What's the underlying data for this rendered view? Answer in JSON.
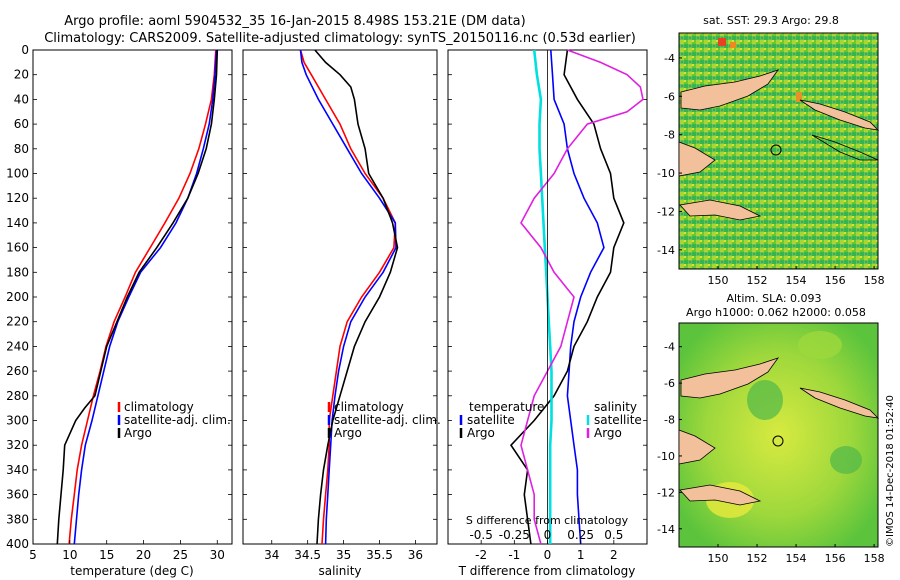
{
  "title": {
    "line1": "Argo profile: aoml 5904532_35 16-Jan-2015 8.498S 153.21E (DM data)",
    "line2": "Climatology: CARS2009. Satellite-adjusted climatology: synTS_20150116.nc (0.53d earlier)"
  },
  "colors": {
    "climatology": "#ff0000",
    "satellite": "#0000ff",
    "argo": "#000000",
    "sal_sat": "#00e0e0",
    "sal_argo": "#e020e0",
    "land": "#f2c09a"
  },
  "depth_ticks": [
    "0",
    "20",
    "40",
    "60",
    "80",
    "100",
    "120",
    "140",
    "160",
    "180",
    "200",
    "220",
    "240",
    "260",
    "280",
    "300",
    "320",
    "340",
    "360",
    "380",
    "400"
  ],
  "chart_data": [
    {
      "type": "line",
      "xlabel": "temperature (deg C)",
      "xlim": [
        5,
        32
      ],
      "ylim": [
        400,
        0
      ],
      "xticks": [
        "5",
        "10",
        "15",
        "20",
        "25",
        "30"
      ],
      "legend": [
        "climatology",
        "satellite-adj. clim.",
        "Argo"
      ],
      "series": [
        {
          "name": "climatology",
          "depth": [
            0,
            20,
            40,
            60,
            80,
            100,
            120,
            140,
            160,
            180,
            200,
            220,
            240,
            260,
            280,
            300,
            320,
            340,
            360,
            380,
            400
          ],
          "values": [
            29.8,
            29.6,
            29.2,
            28.4,
            27.5,
            26.3,
            24.8,
            22.9,
            20.9,
            18.9,
            17.5,
            16.0,
            14.9,
            14.1,
            13.2,
            12.4,
            11.6,
            11.0,
            10.6,
            10.2,
            9.9
          ]
        },
        {
          "name": "satellite-adj. clim.",
          "depth": [
            0,
            20,
            40,
            60,
            80,
            100,
            120,
            140,
            160,
            180,
            200,
            220,
            240,
            260,
            280,
            300,
            320,
            340,
            360,
            380,
            400
          ],
          "values": [
            29.9,
            29.7,
            29.4,
            28.9,
            28.1,
            27.2,
            26.0,
            24.4,
            22.3,
            19.6,
            18.0,
            16.5,
            15.4,
            14.6,
            13.8,
            13.0,
            12.1,
            11.6,
            11.2,
            10.9,
            10.6
          ]
        },
        {
          "name": "Argo",
          "depth": [
            0,
            20,
            40,
            60,
            80,
            100,
            120,
            140,
            160,
            180,
            200,
            220,
            240,
            260,
            280,
            290,
            300,
            320,
            340,
            360,
            380,
            400
          ],
          "values": [
            30.0,
            29.9,
            29.6,
            29.2,
            28.5,
            27.4,
            26.0,
            24.0,
            21.8,
            19.4,
            17.8,
            16.4,
            15.0,
            14.2,
            13.4,
            12.0,
            10.8,
            9.3,
            9.1,
            8.8,
            8.5,
            8.3
          ]
        }
      ]
    },
    {
      "type": "line",
      "xlabel": "salinity",
      "xlim": [
        33.6,
        36.3
      ],
      "ylim": [
        400,
        0
      ],
      "xticks": [
        "34",
        "34.5",
        "35",
        "35.5",
        "36"
      ],
      "legend": [
        "climatology",
        "satellite-adj. clim.",
        "Argo"
      ],
      "series": [
        {
          "name": "climatology",
          "depth": [
            0,
            10,
            20,
            40,
            60,
            80,
            100,
            120,
            140,
            160,
            180,
            200,
            220,
            240,
            260,
            280,
            300,
            320,
            340,
            360,
            380,
            400
          ],
          "values": [
            34.4,
            34.45,
            34.55,
            34.75,
            34.95,
            35.1,
            35.3,
            35.55,
            35.72,
            35.7,
            35.5,
            35.25,
            35.05,
            34.95,
            34.9,
            34.85,
            34.8,
            34.8,
            34.78,
            34.75,
            34.72,
            34.7
          ]
        },
        {
          "name": "satellite-adj. clim.",
          "depth": [
            0,
            10,
            20,
            40,
            60,
            80,
            100,
            120,
            140,
            160,
            180,
            200,
            220,
            240,
            260,
            280,
            300,
            320,
            340,
            360,
            380,
            400
          ],
          "values": [
            34.4,
            34.42,
            34.48,
            34.65,
            34.85,
            35.05,
            35.25,
            35.5,
            35.72,
            35.73,
            35.55,
            35.3,
            35.1,
            35.0,
            34.93,
            34.88,
            34.84,
            34.82,
            34.8,
            34.78,
            34.76,
            34.75
          ]
        },
        {
          "name": "Argo",
          "depth": [
            0,
            10,
            20,
            30,
            40,
            60,
            80,
            100,
            120,
            140,
            160,
            180,
            200,
            220,
            240,
            260,
            280,
            300,
            320,
            340,
            360,
            380,
            400
          ],
          "values": [
            34.6,
            34.75,
            34.95,
            35.1,
            35.15,
            35.2,
            35.3,
            35.35,
            35.55,
            35.68,
            35.75,
            35.65,
            35.5,
            35.3,
            35.15,
            35.05,
            34.95,
            34.85,
            34.78,
            34.72,
            34.68,
            34.65,
            34.63
          ]
        }
      ]
    },
    {
      "type": "line",
      "xlabel": "T difference from climatology",
      "x2label": "S difference from climatology",
      "xlim": [
        -3,
        3
      ],
      "ylim": [
        400,
        0
      ],
      "xticks": [
        "-2",
        "-1",
        "0",
        "1",
        "2"
      ],
      "x2ticks": [
        "-0.5",
        "-0.25",
        "0",
        "0.25",
        "0.5"
      ],
      "legend_left": {
        "title": "temperature",
        "items": [
          "satellite",
          "Argo"
        ]
      },
      "legend_right": {
        "title": "salinity",
        "items": [
          "satellite",
          "Argo"
        ]
      },
      "series": [
        {
          "name": "temperature satellite",
          "depth": [
            0,
            20,
            40,
            60,
            80,
            100,
            120,
            140,
            160,
            180,
            200,
            220,
            240,
            260,
            280,
            300,
            320,
            340,
            360,
            380,
            400
          ],
          "values": [
            0.1,
            0.15,
            0.2,
            0.5,
            0.6,
            0.8,
            1.1,
            1.5,
            1.7,
            1.3,
            1.0,
            0.8,
            0.7,
            0.65,
            0.6,
            0.7,
            0.8,
            0.9,
            0.9,
            0.95,
            1.0
          ]
        },
        {
          "name": "temperature Argo",
          "depth": [
            0,
            20,
            40,
            60,
            80,
            100,
            120,
            140,
            160,
            180,
            200,
            220,
            240,
            260,
            280,
            300,
            320,
            340,
            360,
            380,
            400
          ],
          "values": [
            0.6,
            0.5,
            0.9,
            1.4,
            1.6,
            1.9,
            2.0,
            2.3,
            2.0,
            1.9,
            1.5,
            1.2,
            0.8,
            0.6,
            0.2,
            -0.4,
            -1.1,
            -0.6,
            -0.7,
            -0.6,
            -0.5
          ]
        },
        {
          "name": "salinity satellite",
          "depth": [
            0,
            20,
            40,
            60,
            80,
            100,
            120,
            140,
            160,
            180,
            200,
            220,
            240,
            260,
            280,
            300,
            320,
            340,
            360,
            380,
            400
          ],
          "values": [
            -0.1,
            -0.08,
            -0.05,
            -0.06,
            -0.06,
            -0.05,
            -0.04,
            -0.03,
            -0.02,
            -0.01,
            0,
            0.01,
            0.02,
            0.03,
            0.03,
            0.03,
            0.02,
            0.02,
            0.02,
            0.02,
            0.02
          ]
        },
        {
          "name": "salinity Argo",
          "depth": [
            0,
            10,
            20,
            30,
            40,
            50,
            60,
            80,
            100,
            120,
            140,
            160,
            180,
            200,
            220,
            240,
            260,
            280,
            300,
            320,
            340,
            360,
            380,
            400
          ],
          "values": [
            0.15,
            0.4,
            0.6,
            0.7,
            0.72,
            0.6,
            0.3,
            0.15,
            0.05,
            -0.1,
            -0.2,
            -0.05,
            0.05,
            0.2,
            0.15,
            0.1,
            0.0,
            -0.1,
            -0.15,
            -0.2,
            -0.15,
            -0.1,
            -0.1,
            -0.05
          ]
        }
      ]
    },
    {
      "type": "heatmap",
      "title": "sat. SST: 29.3 Argo: 29.8",
      "xticks": [
        "150",
        "152",
        "154",
        "156",
        "158"
      ],
      "yticks": [
        "-4",
        "-6",
        "-8",
        "-10",
        "-12",
        "-14"
      ],
      "xlim": [
        148,
        158.2
      ],
      "ylim": [
        -15,
        -2.7
      ],
      "profile_lon": 153.21,
      "profile_lat": -8.498
    },
    {
      "type": "heatmap",
      "title_line1": "Altim. SLA: 0.093",
      "title_line2": "Argo h1000: 0.062 h2000: 0.058",
      "xticks": [
        "150",
        "152",
        "154",
        "156",
        "158"
      ],
      "yticks": [
        "-4",
        "-6",
        "-8",
        "-10",
        "-12",
        "-14"
      ],
      "xlim": [
        148,
        158.2
      ],
      "ylim": [
        -15,
        -2.7
      ],
      "profile_lon": 153.21,
      "profile_lat": -8.498
    }
  ],
  "credit": "©IMOS 14-Dec-2018 01:52:40"
}
